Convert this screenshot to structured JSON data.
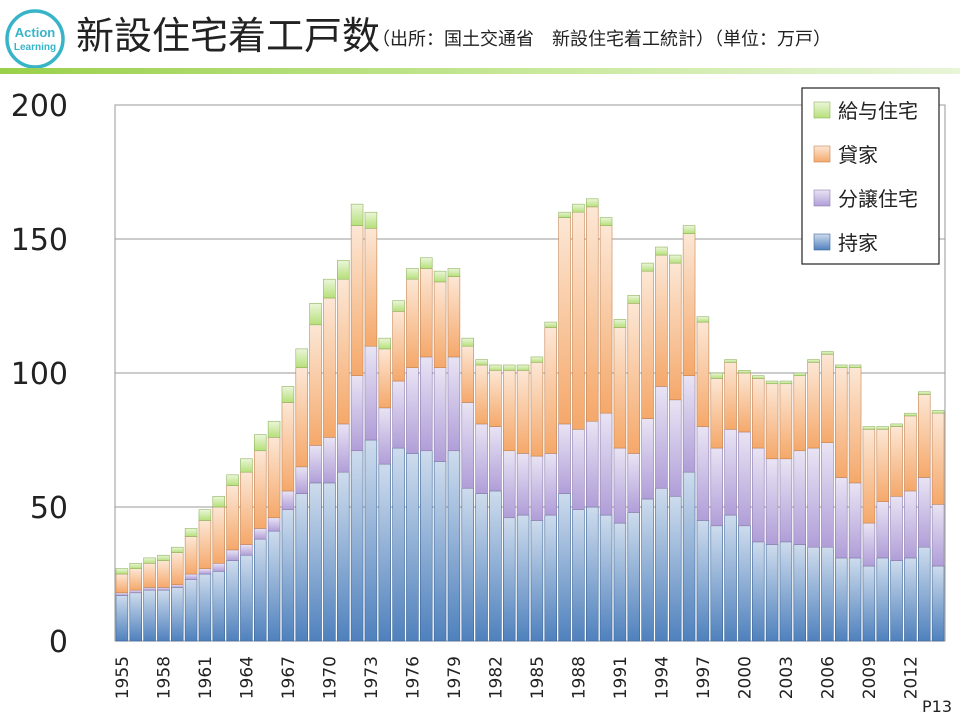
{
  "logo": {
    "line1": "Action",
    "line2": "Learning"
  },
  "header": {
    "title": "新設住宅着工戸数",
    "subtitle": "（出所：国土交通省　新設住宅着工統計）（単位：万戸）"
  },
  "page_number": "P13",
  "colors": {
    "owner": "#4f81bd",
    "condo": "#b09ed8",
    "rental": "#f5a86a",
    "issued": "#b6e07a"
  },
  "chart_data": {
    "type": "bar",
    "stacked": true,
    "title": "新設住宅着工戸数",
    "xlabel": "",
    "ylabel": "",
    "unit": "万戸",
    "ylim": [
      0,
      200
    ],
    "yticks": [
      0,
      50,
      100,
      150,
      200
    ],
    "grid": true,
    "legend_position": "top-right",
    "categories": [
      "1955",
      "1956",
      "1957",
      "1958",
      "1959",
      "1960",
      "1961",
      "1962",
      "1963",
      "1964",
      "1965",
      "1966",
      "1967",
      "1968",
      "1969",
      "1970",
      "1971",
      "1972",
      "1973",
      "1974",
      "1975",
      "1976",
      "1977",
      "1978",
      "1979",
      "1980",
      "1981",
      "1982",
      "1983",
      "1984",
      "1985",
      "1986",
      "1987",
      "1988",
      "1989",
      "1990",
      "1991",
      "1992",
      "1993",
      "1994",
      "1995",
      "1996",
      "1997",
      "1998",
      "1999",
      "2000",
      "2001",
      "2002",
      "2003",
      "2004",
      "2005",
      "2006",
      "2007",
      "2008",
      "2009",
      "2010",
      "2011",
      "2012",
      "2013",
      "2014"
    ],
    "xtick_labels": [
      "1955",
      "1958",
      "1961",
      "1964",
      "1967",
      "1970",
      "1973",
      "1976",
      "1979",
      "1982",
      "1985",
      "1988",
      "1991",
      "1994",
      "1997",
      "2000",
      "2003",
      "2006",
      "2009",
      "2012"
    ],
    "series": [
      {
        "name": "持家",
        "key": "owner",
        "values": [
          17,
          18,
          19,
          19,
          20,
          23,
          25,
          26,
          30,
          32,
          38,
          41,
          49,
          55,
          59,
          59,
          63,
          71,
          75,
          66,
          72,
          70,
          71,
          67,
          71,
          57,
          55,
          56,
          46,
          47,
          45,
          47,
          55,
          49,
          50,
          47,
          44,
          48,
          53,
          57,
          54,
          63,
          45,
          43,
          47,
          43,
          37,
          36,
          37,
          36,
          35,
          35,
          31,
          31,
          28,
          31,
          30,
          31,
          35,
          28
        ]
      },
      {
        "name": "分譲住宅",
        "key": "condo",
        "values": [
          1,
          1,
          1,
          1,
          1,
          2,
          2,
          3,
          4,
          4,
          4,
          5,
          7,
          10,
          14,
          17,
          18,
          28,
          35,
          21,
          25,
          32,
          35,
          35,
          35,
          32,
          26,
          24,
          25,
          23,
          24,
          23,
          26,
          30,
          32,
          38,
          28,
          22,
          30,
          38,
          36,
          36,
          35,
          29,
          32,
          35,
          35,
          32,
          31,
          35,
          37,
          39,
          30,
          28,
          16,
          21,
          24,
          25,
          26,
          23
        ]
      },
      {
        "name": "貸家",
        "key": "rental",
        "values": [
          7,
          8,
          9,
          10,
          12,
          14,
          18,
          21,
          24,
          27,
          29,
          30,
          33,
          37,
          45,
          52,
          54,
          56,
          44,
          22,
          26,
          33,
          33,
          32,
          30,
          21,
          22,
          21,
          30,
          31,
          35,
          47,
          77,
          81,
          80,
          70,
          45,
          56,
          55,
          49,
          51,
          53,
          39,
          26,
          25,
          22,
          26,
          28,
          28,
          28,
          32,
          33,
          41,
          43,
          35,
          27,
          26,
          28,
          31,
          34
        ]
      },
      {
        "name": "給与住宅",
        "key": "issued",
        "values": [
          2,
          2,
          2,
          2,
          2,
          3,
          4,
          4,
          4,
          5,
          6,
          6,
          6,
          7,
          8,
          7,
          7,
          8,
          6,
          4,
          4,
          4,
          4,
          4,
          3,
          3,
          2,
          2,
          2,
          2,
          2,
          2,
          2,
          3,
          3,
          3,
          3,
          3,
          3,
          3,
          3,
          3,
          2,
          2,
          1,
          1,
          1,
          1,
          1,
          1,
          1,
          1,
          1,
          1,
          1,
          1,
          1,
          1,
          1,
          1
        ]
      }
    ]
  }
}
